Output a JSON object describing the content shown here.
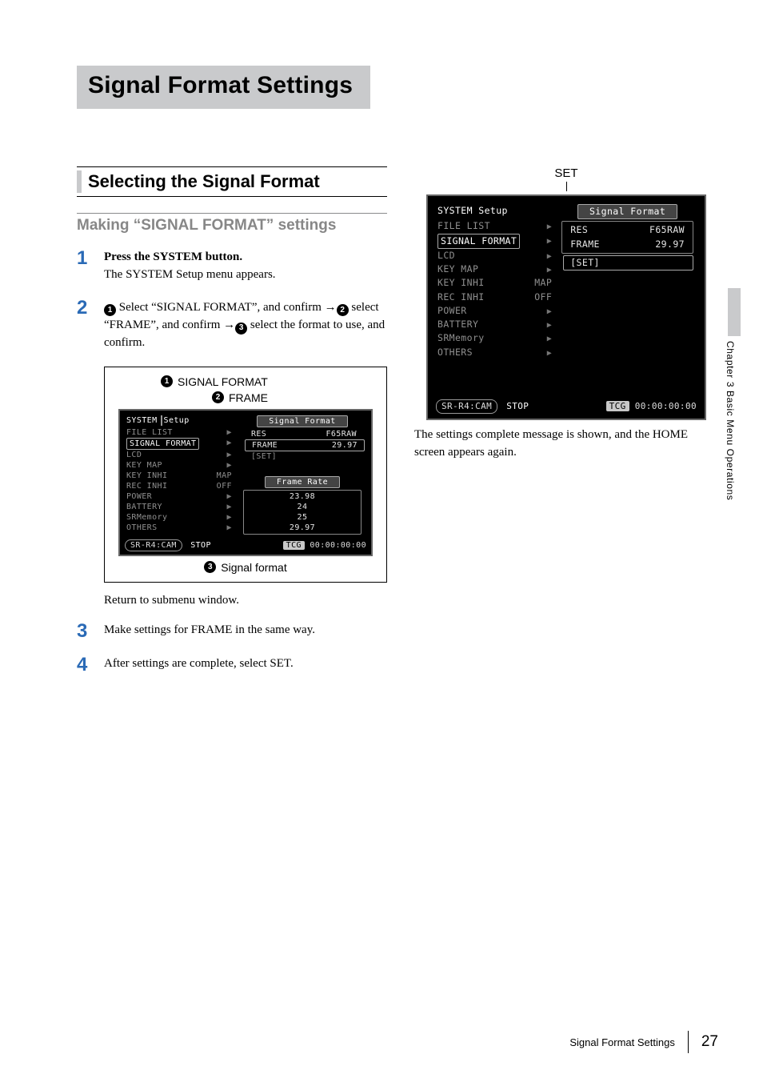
{
  "title": "Signal Format Settings",
  "section": "Selecting the Signal Format",
  "subheading": "Making “SIGNAL FORMAT” settings",
  "steps": {
    "s1": {
      "num": "1",
      "bold": "Press the SYSTEM button.",
      "plain": "The SYSTEM Setup menu appears."
    },
    "s2": {
      "num": "2",
      "seg1": " Select “SIGNAL FORMAT”, and confirm ",
      "seg2": " select “FRAME”, and confirm ",
      "seg3": " select the format to use, and confirm."
    },
    "s3": {
      "num": "3",
      "bold": "Make settings for FRAME in the same way."
    },
    "s4": {
      "num": "4",
      "bold": "After settings are complete, select SET."
    }
  },
  "fig": {
    "sf_label": "SIGNAL FORMAT",
    "fr_label": "FRAME",
    "sig_label": "Signal format",
    "set_label": "SET"
  },
  "return_text": "Return to submenu window.",
  "right_caption": "The settings complete message is shown, and the HOME screen appears again.",
  "screen_small": {
    "heading_l": "SYSTEM",
    "heading_r": "Setup",
    "menu": [
      {
        "lbl": "FILE LIST",
        "val": ""
      },
      {
        "lbl": "SIGNAL FORMAT",
        "val": "",
        "sel": true
      },
      {
        "lbl": "LCD",
        "val": ""
      },
      {
        "lbl": "KEY MAP",
        "val": ""
      },
      {
        "lbl": "KEY INHI",
        "val": "MAP"
      },
      {
        "lbl": "REC INHI",
        "val": "OFF"
      },
      {
        "lbl": "POWER",
        "val": ""
      },
      {
        "lbl": "BATTERY",
        "val": ""
      },
      {
        "lbl": "SRMemory",
        "val": ""
      },
      {
        "lbl": "OTHERS",
        "val": ""
      }
    ],
    "panel_title": "Signal Format",
    "res_lbl": "RES",
    "res_val": "F65RAW",
    "frame_lbl": "FRAME",
    "frame_val": "29.97",
    "set_lbl": "[SET]",
    "rate_title": "Frame Rate",
    "rates": [
      "23.98",
      "24",
      "25",
      "29.97"
    ],
    "status_left": "SR-R4:CAM",
    "status_stop": "STOP",
    "status_tcg": "TCG",
    "status_tc": "00:00:00:00"
  },
  "screen_large": {
    "heading": "SYSTEM Setup",
    "menu": [
      {
        "lbl": "FILE LIST",
        "val": ""
      },
      {
        "lbl": "SIGNAL FORMAT",
        "val": "",
        "sel": true
      },
      {
        "lbl": "LCD",
        "val": ""
      },
      {
        "lbl": "KEY MAP",
        "val": ""
      },
      {
        "lbl": "KEY INHI",
        "val": "MAP"
      },
      {
        "lbl": "REC INHI",
        "val": "OFF"
      },
      {
        "lbl": "POWER",
        "val": ""
      },
      {
        "lbl": "BATTERY",
        "val": ""
      },
      {
        "lbl": "SRMemory",
        "val": ""
      },
      {
        "lbl": "OTHERS",
        "val": ""
      }
    ],
    "panel_title": "Signal Format",
    "res_lbl": "RES",
    "res_val": "F65RAW",
    "frame_lbl": "FRAME",
    "frame_val": "29.97",
    "set_lbl": "[SET]",
    "status_left": "SR-R4:CAM",
    "status_stop": "STOP",
    "status_tcg": "TCG",
    "status_tc": "00:00:00:00"
  },
  "side_tab": "Chapter 3  Basic Menu Operations",
  "footer": {
    "text": "Signal Format Settings",
    "page": "27"
  }
}
